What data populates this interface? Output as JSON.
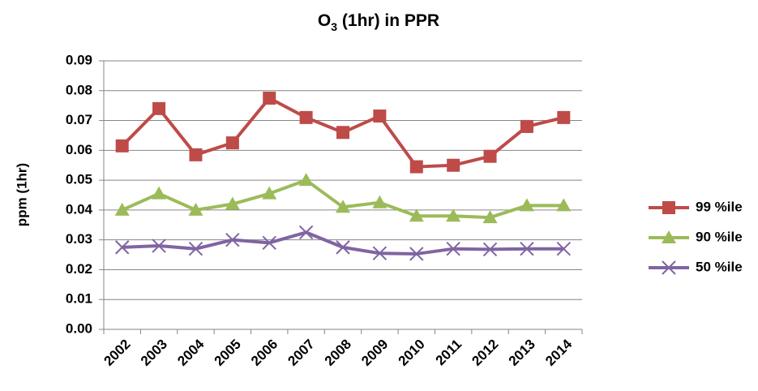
{
  "chart_data": {
    "type": "line",
    "title": [
      "O",
      "3",
      " (1hr) in PPR"
    ],
    "y_label": "ppm (1hr)",
    "categories": [
      "2002",
      "2003",
      "2004",
      "2005",
      "2006",
      "2007",
      "2008",
      "2009",
      "2010",
      "2011",
      "2012",
      "2013",
      "2014"
    ],
    "series": [
      {
        "name": "99 %ile",
        "color": "#be4b48",
        "marker": "square",
        "values": [
          0.0615,
          0.074,
          0.0585,
          0.0625,
          0.0775,
          0.071,
          0.066,
          0.0715,
          0.0545,
          0.055,
          0.058,
          0.068,
          0.071
        ]
      },
      {
        "name": "90 %ile",
        "color": "#9bbb59",
        "marker": "triangle",
        "values": [
          0.04,
          0.0455,
          0.04,
          0.042,
          0.0455,
          0.05,
          0.041,
          0.0425,
          0.038,
          0.038,
          0.0375,
          0.0415,
          0.0415
        ]
      },
      {
        "name": "50 %ile",
        "color": "#8064a2",
        "marker": "x",
        "values": [
          0.0275,
          0.028,
          0.027,
          0.03,
          0.029,
          0.0325,
          0.0275,
          0.0255,
          0.0253,
          0.027,
          0.0268,
          0.027,
          0.027
        ]
      }
    ],
    "ylim": [
      0,
      0.09
    ],
    "yticks": [
      {
        "value": 0,
        "label": "0.00"
      },
      {
        "value": 0.01,
        "label": "0.01"
      },
      {
        "value": 0.02,
        "label": "0.02"
      },
      {
        "value": 0.03,
        "label": "0.03"
      },
      {
        "value": 0.04,
        "label": "0.04"
      },
      {
        "value": 0.05,
        "label": "0.05"
      },
      {
        "value": 0.06,
        "label": "0.06"
      },
      {
        "value": 0.07,
        "label": "0.07"
      },
      {
        "value": 0.08,
        "label": "0.08"
      },
      {
        "value": 0.09,
        "label": "0.09"
      }
    ],
    "grid": true,
    "legend": "right"
  }
}
